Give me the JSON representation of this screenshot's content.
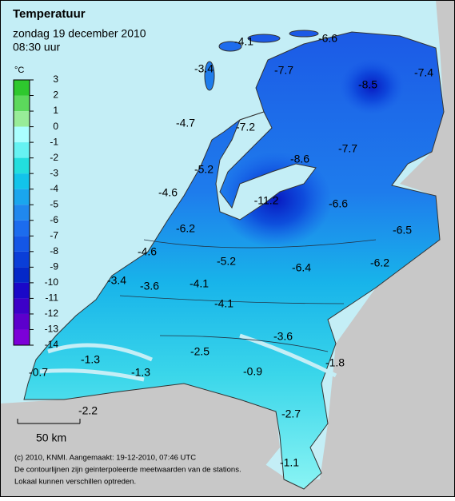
{
  "header": {
    "title": "Temperatuur",
    "date": "zondag 19 december 2010",
    "time": "08:30 uur"
  },
  "legend": {
    "unit": "°C",
    "ticks": [
      3,
      2,
      1,
      0,
      -1,
      -2,
      -3,
      -4,
      -5,
      -6,
      -7,
      -8,
      -9,
      -10,
      -11,
      -12,
      -13,
      -14
    ],
    "colors": [
      "#2ec82e",
      "#5cd85c",
      "#98ec98",
      "#aaffff",
      "#66f2f2",
      "#22dede",
      "#12c4ea",
      "#1aa6ee",
      "#2088ee",
      "#1c6cee",
      "#1456e6",
      "#0a3ed8",
      "#0428c8",
      "#1a08c8",
      "#3c00c8",
      "#5c00cc",
      "#7c00d8"
    ]
  },
  "station_values": [
    -4.1,
    -6.6,
    -3.4,
    -7.7,
    -8.5,
    -7.4,
    -4.7,
    -7.2,
    -8.6,
    -7.7,
    -5.2,
    -4.6,
    -11.2,
    -6.6,
    -6.2,
    -6.5,
    -4.6,
    -5.2,
    -6.4,
    -6.2,
    -3.4,
    -3.6,
    -4.1,
    -4.1,
    -3.6,
    -2.5,
    -1.8,
    -1.3,
    -0.9,
    -0.7,
    -1.3,
    -2.2,
    -2.7,
    -1.1
  ],
  "scale": "50 km",
  "credits": [
    "(c) 2010, KNMI. Aangemaakt: 19-12-2010, 07:46 UTC",
    "De contourlijnen zijn geinterpoleerde meetwaarden van de stations.",
    "Lokaal kunnen verschillen optreden."
  ]
}
